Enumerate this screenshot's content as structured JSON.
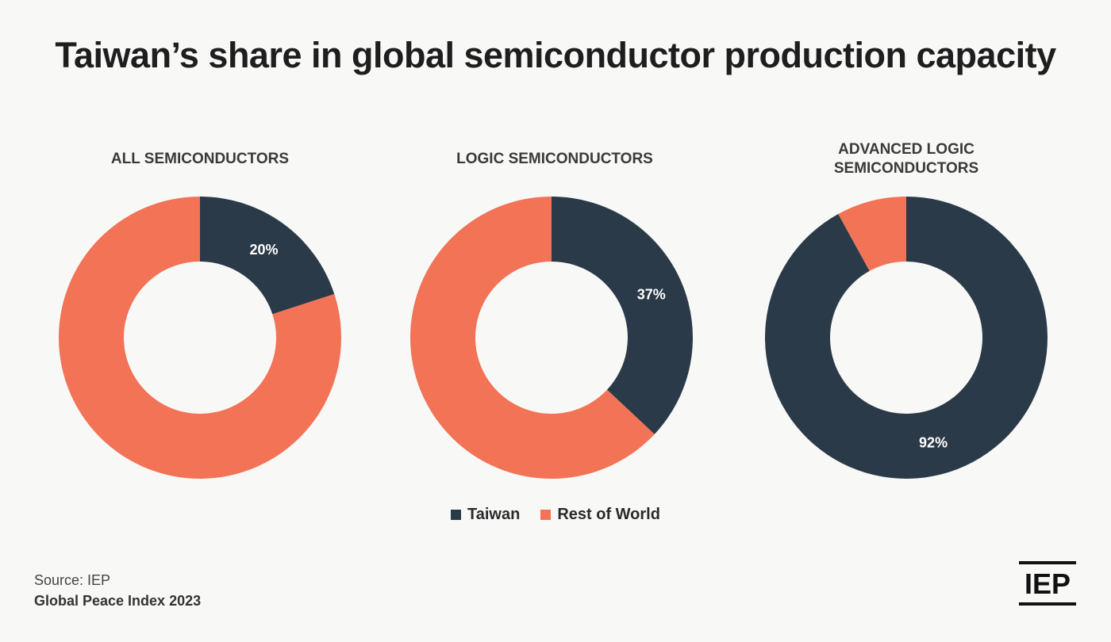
{
  "title": "Taiwan’s share in global semiconductor production capacity",
  "colors": {
    "taiwan": "#2b3a48",
    "rest": "#f27356",
    "label": "#ffffff"
  },
  "legend": [
    {
      "label": "Taiwan",
      "color": "#2b3a48"
    },
    {
      "label": "Rest of World",
      "color": "#f27356"
    }
  ],
  "chart_data": [
    {
      "type": "pie",
      "title": "ALL SEMICONDUCTORS",
      "categories": [
        "Taiwan",
        "Rest of World"
      ],
      "values": [
        20,
        80
      ],
      "labels": [
        "20%",
        ""
      ]
    },
    {
      "type": "pie",
      "title": "LOGIC SEMICONDUCTORS",
      "categories": [
        "Taiwan",
        "Rest of World"
      ],
      "values": [
        37,
        63
      ],
      "labels": [
        "37%",
        ""
      ]
    },
    {
      "type": "pie",
      "title": "ADVANCED LOGIC\nSEMICONDUCTORS",
      "categories": [
        "Taiwan",
        "Rest of World"
      ],
      "values": [
        92,
        8
      ],
      "labels": [
        "92%",
        ""
      ]
    }
  ],
  "source": "Source: IEP",
  "source_detail": "Global Peace Index 2023",
  "logo": "IEP"
}
